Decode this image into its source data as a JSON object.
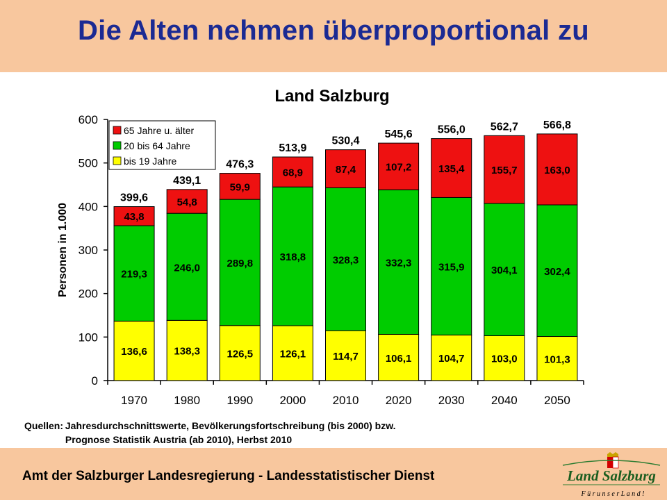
{
  "slide": {
    "title": "Die Alten nehmen überproportional zu",
    "footer": "Amt der Salzburger Landesregierung - Landesstatistischer Dienst",
    "logo_text": "Land Salzburg",
    "logo_tagline": "F ü r   u n s e r   L a n d !",
    "sources_label": "Quellen:",
    "sources_line1": "Jahresdurchschnittswerte, Bevölkerungsfortschreibung (bis 2000) bzw.",
    "sources_line2": "Prognose Statistik Austria (ab 2010), Herbst 2010"
  },
  "colors": {
    "header_bg": "#f8c79e",
    "title": "#1b2a93",
    "series_young": "#ffff00",
    "series_adult": "#00cc00",
    "series_old": "#ee1111"
  },
  "chart_data": {
    "type": "bar",
    "stacked": true,
    "title": "Land Salzburg",
    "ylabel": "Personen in 1.000",
    "xlabel": "",
    "ylim": [
      0,
      600
    ],
    "yticks": [
      0,
      100,
      200,
      300,
      400,
      500,
      600
    ],
    "categories": [
      "1970",
      "1980",
      "1990",
      "2000",
      "2010",
      "2020",
      "2030",
      "2040",
      "2050"
    ],
    "series": [
      {
        "name": "bis 19 Jahre",
        "color": "#ffff00",
        "values": [
          136.6,
          138.3,
          126.5,
          126.1,
          114.7,
          106.1,
          104.7,
          103.0,
          101.3
        ],
        "labels": [
          "136,6",
          "138,3",
          "126,5",
          "126,1",
          "114,7",
          "106,1",
          "104,7",
          "103,0",
          "101,3"
        ]
      },
      {
        "name": "20 bis 64 Jahre",
        "color": "#00cc00",
        "values": [
          219.3,
          246.0,
          289.8,
          318.8,
          328.3,
          332.3,
          315.9,
          304.1,
          302.4
        ],
        "labels": [
          "219,3",
          "246,0",
          "289,8",
          "318,8",
          "328,3",
          "332,3",
          "315,9",
          "304,1",
          "302,4"
        ]
      },
      {
        "name": "65 Jahre u. älter",
        "color": "#ee1111",
        "values": [
          43.8,
          54.8,
          59.9,
          68.9,
          87.4,
          107.2,
          135.4,
          155.7,
          163.0
        ],
        "labels": [
          "43,8",
          "54,8",
          "59,9",
          "68,9",
          "87,4",
          "107,2",
          "135,4",
          "155,7",
          "163,0"
        ]
      }
    ],
    "totals": [
      399.6,
      439.1,
      476.3,
      513.9,
      530.4,
      545.6,
      556.0,
      562.7,
      566.8
    ],
    "total_labels": [
      "399,6",
      "439,1",
      "476,3",
      "513,9",
      "530,4",
      "545,6",
      "556,0",
      "562,7",
      "566,8"
    ],
    "legend": {
      "position": "top-left",
      "order": [
        "65 Jahre u. älter",
        "20 bis 64 Jahre",
        "bis 19 Jahre"
      ]
    },
    "grid": false
  }
}
